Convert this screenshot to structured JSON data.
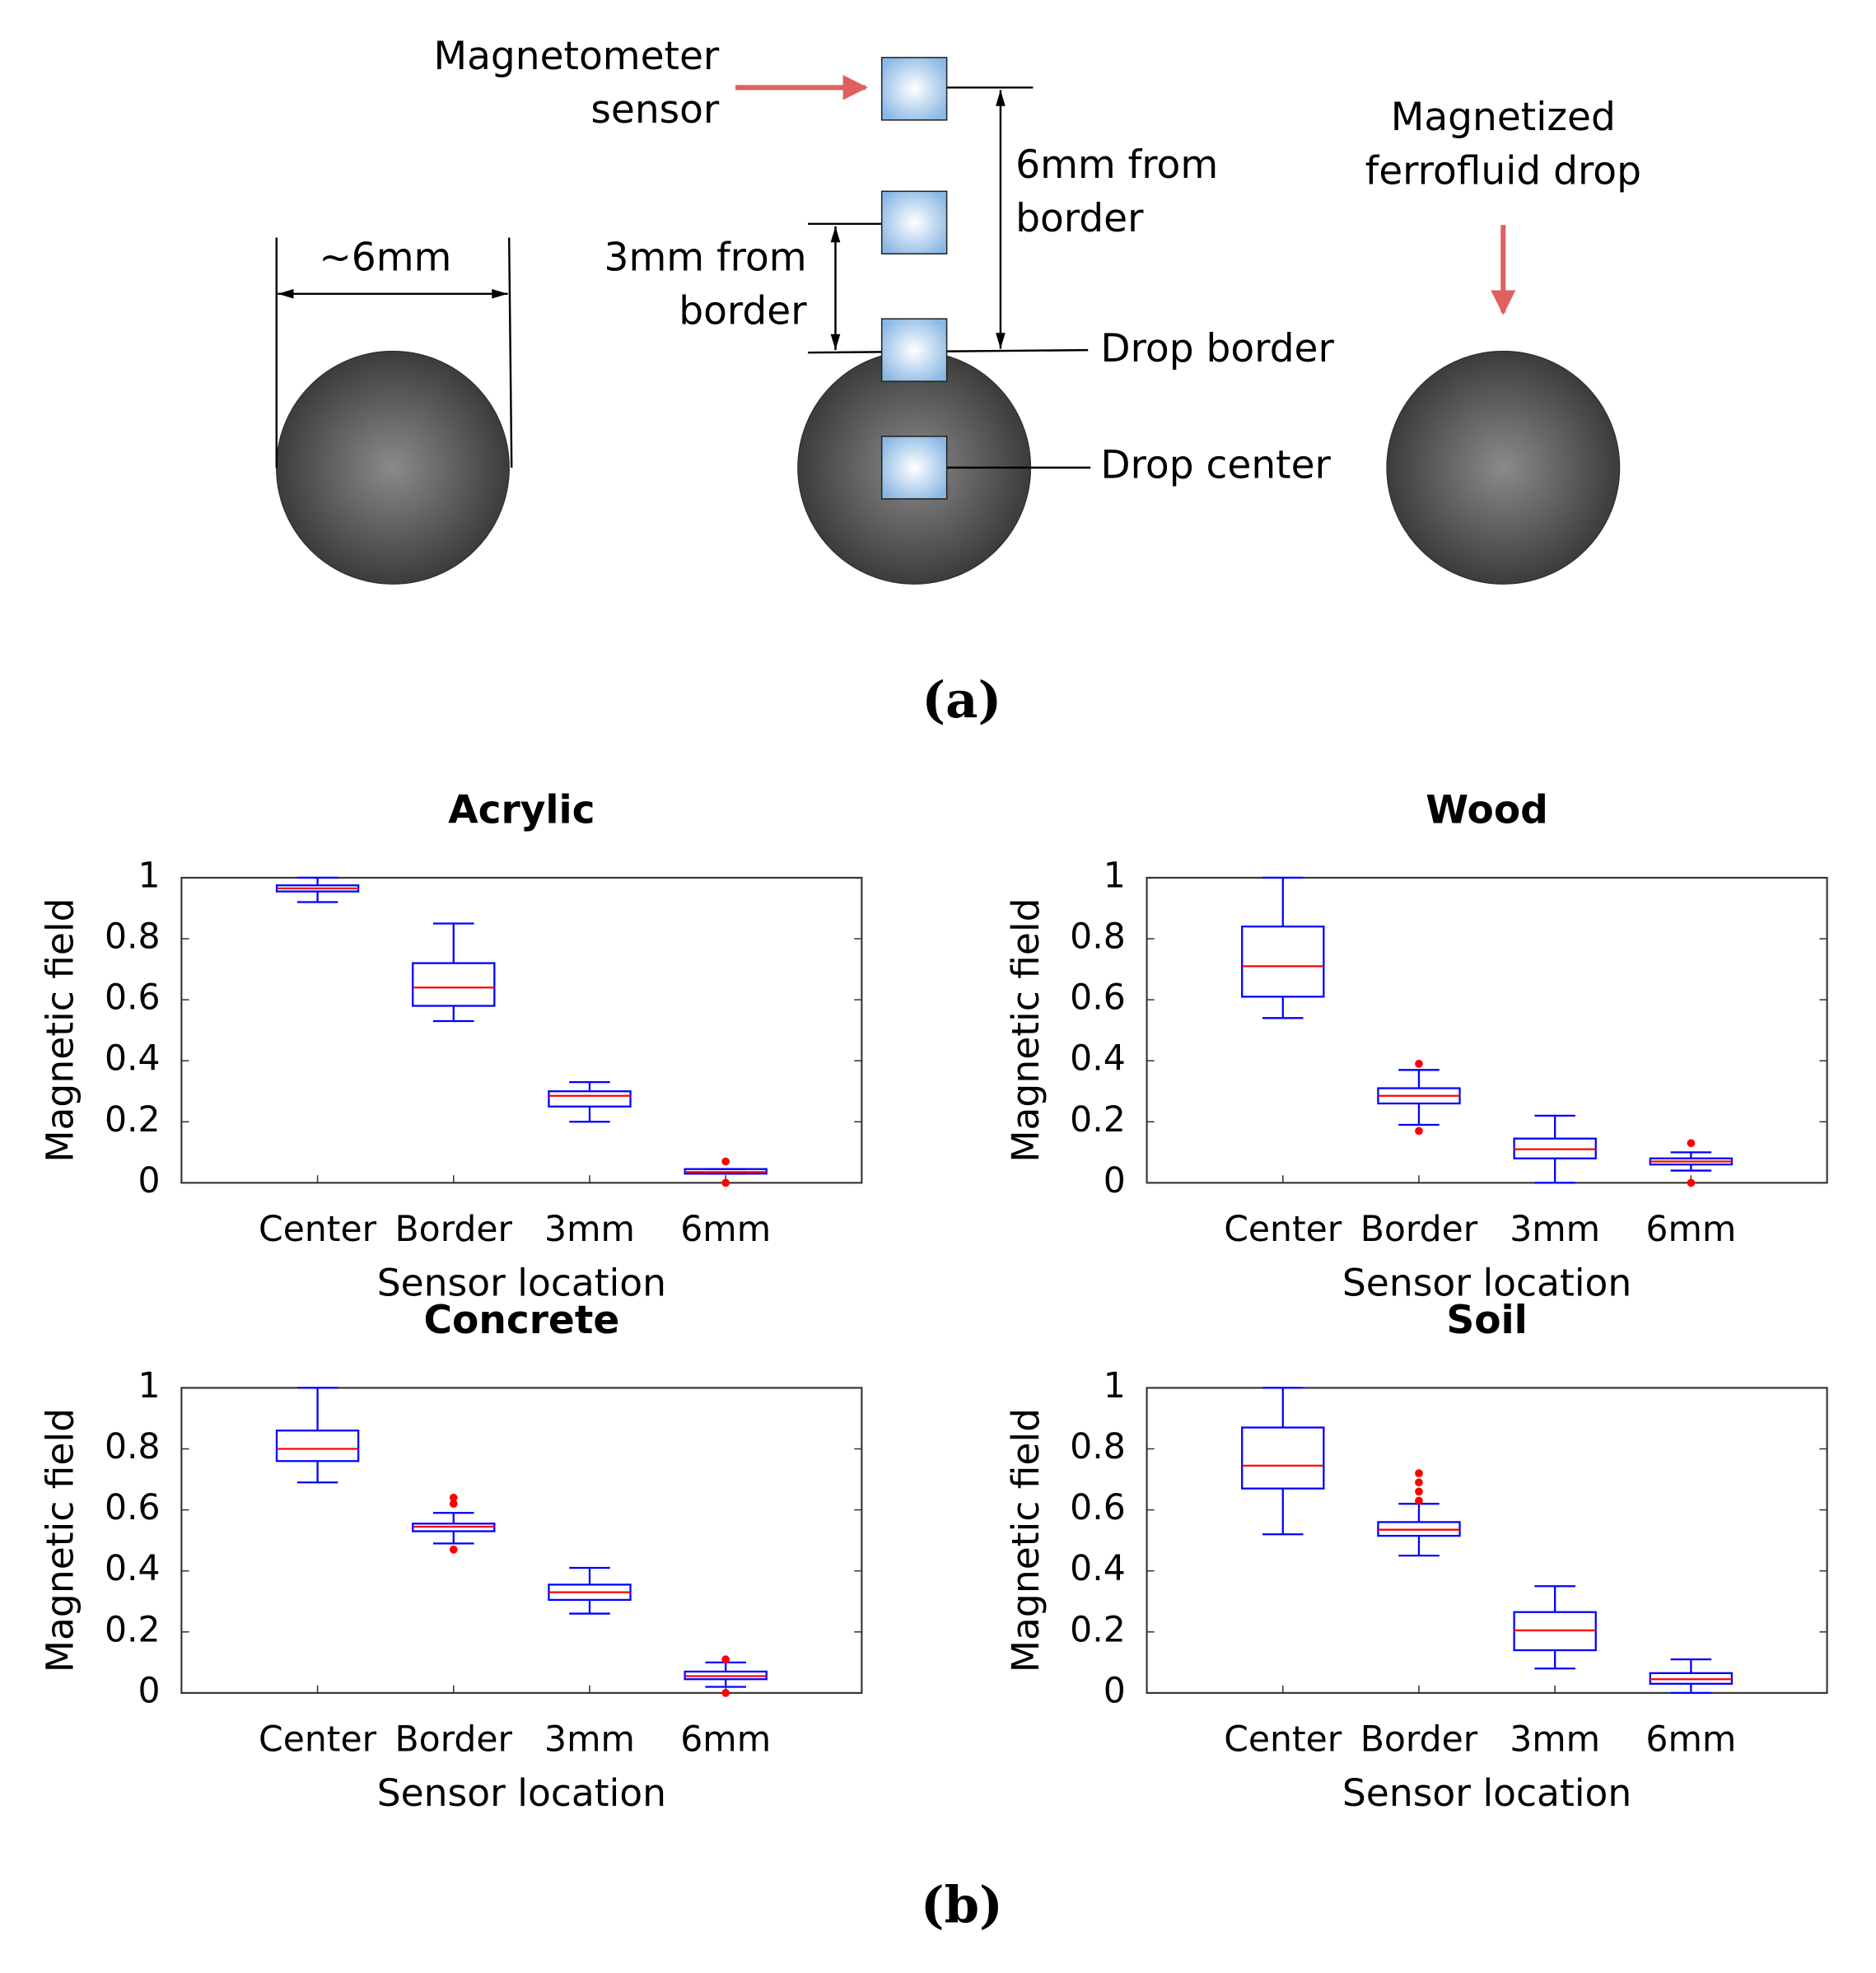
{
  "diagram": {
    "size_label": "~6mm",
    "sensor_label": [
      "Magnetometer",
      "sensor"
    ],
    "six_mm_label": [
      "6mm from",
      "border"
    ],
    "three_mm_label": [
      "3mm from",
      "border"
    ],
    "drop_border_label": "Drop border",
    "drop_center_label": "Drop center",
    "drop_label": [
      "Magnetized",
      "ferrofluid drop"
    ]
  },
  "panel_labels": [
    "(a)",
    "(b)"
  ],
  "chart_data": [
    {
      "type": "box",
      "title": "Acrylic",
      "x_label": "Sensor location",
      "y_label": "Magnetic field",
      "categories": [
        "Center",
        "Border",
        "3mm",
        "6mm"
      ],
      "box_color": "#0000ff",
      "median_color": "#ff0000",
      "ylim": [
        0,
        1
      ],
      "yticks": [
        0,
        0.2,
        0.4,
        0.6,
        0.8,
        1
      ],
      "boxes": [
        {
          "min": 0.92,
          "q1": 0.955,
          "median": 0.965,
          "q3": 0.975,
          "max": 1,
          "outliers": []
        },
        {
          "min": 0.53,
          "q1": 0.58,
          "median": 0.64,
          "q3": 0.72,
          "max": 0.85,
          "outliers": []
        },
        {
          "min": 0.2,
          "q1": 0.25,
          "median": 0.285,
          "q3": 0.3,
          "max": 0.33,
          "outliers": []
        },
        {
          "min": 0.03,
          "q1": 0.03,
          "median": 0.035,
          "q3": 0.045,
          "max": 0.045,
          "outliers": [
            0,
            0.07
          ]
        }
      ]
    },
    {
      "type": "box",
      "title": "Wood",
      "x_label": "Sensor location",
      "y_label": "Magnetic field",
      "categories": [
        "Center",
        "Border",
        "3mm",
        "6mm"
      ],
      "box_color": "#0000ff",
      "median_color": "#ff0000",
      "ylim": [
        0,
        1
      ],
      "yticks": [
        0,
        0.2,
        0.4,
        0.6,
        0.8,
        1
      ],
      "boxes": [
        {
          "min": 0.54,
          "q1": 0.61,
          "median": 0.71,
          "q3": 0.84,
          "max": 1,
          "outliers": []
        },
        {
          "min": 0.19,
          "q1": 0.26,
          "median": 0.285,
          "q3": 0.31,
          "max": 0.37,
          "outliers": [
            0.17,
            0.39
          ]
        },
        {
          "min": 0,
          "q1": 0.08,
          "median": 0.11,
          "q3": 0.145,
          "max": 0.22,
          "outliers": []
        },
        {
          "min": 0.04,
          "q1": 0.06,
          "median": 0.07,
          "q3": 0.08,
          "max": 0.1,
          "outliers": [
            0,
            0.13
          ]
        }
      ]
    },
    {
      "type": "box",
      "title": "Concrete",
      "x_label": "Sensor location",
      "y_label": "Magnetic field",
      "categories": [
        "Center",
        "Border",
        "3mm",
        "6mm"
      ],
      "box_color": "#0000ff",
      "median_color": "#ff0000",
      "ylim": [
        0,
        1
      ],
      "yticks": [
        0,
        0.2,
        0.4,
        0.6,
        0.8,
        1
      ],
      "boxes": [
        {
          "min": 0.69,
          "q1": 0.76,
          "median": 0.8,
          "q3": 0.86,
          "max": 1,
          "outliers": []
        },
        {
          "min": 0.49,
          "q1": 0.53,
          "median": 0.545,
          "q3": 0.555,
          "max": 0.59,
          "outliers": [
            0.47,
            0.62,
            0.64
          ]
        },
        {
          "min": 0.26,
          "q1": 0.305,
          "median": 0.33,
          "q3": 0.355,
          "max": 0.41,
          "outliers": []
        },
        {
          "min": 0.02,
          "q1": 0.045,
          "median": 0.055,
          "q3": 0.07,
          "max": 0.1,
          "outliers": [
            0,
            0.11
          ]
        }
      ]
    },
    {
      "type": "box",
      "title": "Soil",
      "x_label": "Sensor location",
      "y_label": "Magnetic field",
      "categories": [
        "Center",
        "Border",
        "3mm",
        "6mm"
      ],
      "box_color": "#0000ff",
      "median_color": "#ff0000",
      "ylim": [
        0,
        1
      ],
      "yticks": [
        0,
        0.2,
        0.4,
        0.6,
        0.8,
        1
      ],
      "boxes": [
        {
          "min": 0.52,
          "q1": 0.67,
          "median": 0.745,
          "q3": 0.87,
          "max": 1,
          "outliers": []
        },
        {
          "min": 0.45,
          "q1": 0.515,
          "median": 0.535,
          "q3": 0.56,
          "max": 0.62,
          "outliers": [
            0.63,
            0.66,
            0.69,
            0.72
          ]
        },
        {
          "min": 0.08,
          "q1": 0.14,
          "median": 0.205,
          "q3": 0.265,
          "max": 0.35,
          "outliers": []
        },
        {
          "min": 0,
          "q1": 0.03,
          "median": 0.045,
          "q3": 0.065,
          "max": 0.11,
          "outliers": []
        }
      ]
    }
  ]
}
